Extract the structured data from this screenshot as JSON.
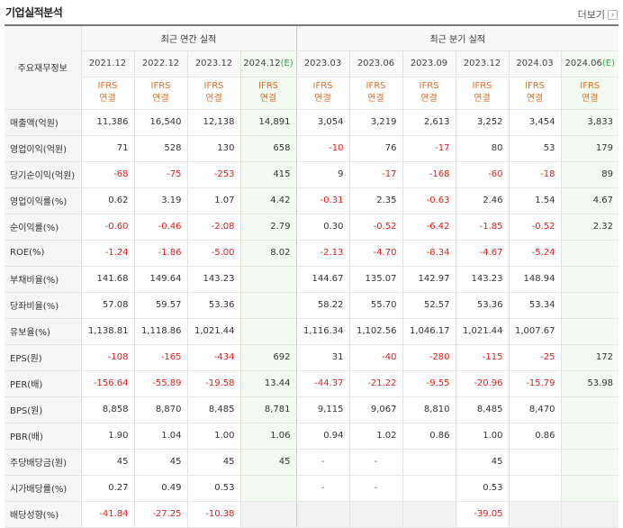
{
  "title": "기업실적분석",
  "more_label": "더보기",
  "corner_label": "주요재무정보",
  "groups": {
    "annual": "최근 연간 실적",
    "quarterly": "최근 분기 실적"
  },
  "periods": [
    {
      "label": "2021.12",
      "est": ""
    },
    {
      "label": "2022.12",
      "est": ""
    },
    {
      "label": "2023.12",
      "est": ""
    },
    {
      "label": "2024.12",
      "est": "(E)"
    },
    {
      "label": "2023.03",
      "est": ""
    },
    {
      "label": "2023.06",
      "est": ""
    },
    {
      "label": "2023.09",
      "est": ""
    },
    {
      "label": "2023.12",
      "est": ""
    },
    {
      "label": "2024.03",
      "est": ""
    },
    {
      "label": "2024.06",
      "est": "(E)"
    }
  ],
  "ifrs": {
    "line1": "IFRS",
    "line2": "연결"
  },
  "rows": [
    {
      "label": "매출액(억원)",
      "values": [
        "11,386",
        "16,540",
        "12,138",
        "14,891",
        "3,054",
        "3,219",
        "2,613",
        "3,252",
        "3,454",
        "3,833"
      ]
    },
    {
      "label": "영업이익(억원)",
      "values": [
        "71",
        "528",
        "130",
        "658",
        "-10",
        "76",
        "-17",
        "80",
        "53",
        "179"
      ]
    },
    {
      "label": "당기순이익(억원)",
      "values": [
        "-68",
        "-75",
        "-253",
        "415",
        "9",
        "-17",
        "-168",
        "-60",
        "-18",
        "89"
      ]
    },
    {
      "label": "영업이익률(%)",
      "values": [
        "0.62",
        "3.19",
        "1.07",
        "4.42",
        "-0.31",
        "2.35",
        "-0.63",
        "2.46",
        "1.54",
        "4.67"
      ]
    },
    {
      "label": "순이익률(%)",
      "values": [
        "-0.60",
        "-0.46",
        "-2.08",
        "2.79",
        "0.30",
        "-0.52",
        "-6.42",
        "-1.85",
        "-0.52",
        "2.32"
      ]
    },
    {
      "label": "ROE(%)",
      "values": [
        "-1.24",
        "-1.86",
        "-5.00",
        "8.02",
        "-2.13",
        "-4.70",
        "-8.34",
        "-4.67",
        "-5.24",
        ""
      ]
    },
    {
      "label": "부채비율(%)",
      "values": [
        "141.68",
        "149.64",
        "143.23",
        "",
        "144.67",
        "135.07",
        "142.97",
        "143.23",
        "148.94",
        ""
      ]
    },
    {
      "label": "당좌비율(%)",
      "values": [
        "57.08",
        "59.57",
        "53.36",
        "",
        "58.22",
        "55.70",
        "52.57",
        "53.36",
        "53.34",
        ""
      ]
    },
    {
      "label": "유보율(%)",
      "values": [
        "1,138.81",
        "1,118.86",
        "1,021.44",
        "",
        "1,116.34",
        "1,102.56",
        "1,046.17",
        "1,021.44",
        "1,007.67",
        ""
      ]
    },
    {
      "label": "EPS(원)",
      "values": [
        "-108",
        "-165",
        "-434",
        "692",
        "31",
        "-40",
        "-280",
        "-115",
        "-25",
        "172"
      ]
    },
    {
      "label": "PER(배)",
      "values": [
        "-156.64",
        "-55.89",
        "-19.58",
        "13.44",
        "-44.37",
        "-21.22",
        "-9.55",
        "-20.96",
        "-15.79",
        "53.98"
      ]
    },
    {
      "label": "BPS(원)",
      "values": [
        "8,858",
        "8,870",
        "8,485",
        "8,781",
        "9,115",
        "9,067",
        "8,810",
        "8,485",
        "8,470",
        ""
      ]
    },
    {
      "label": "PBR(배)",
      "values": [
        "1.90",
        "1.04",
        "1.00",
        "1.06",
        "0.94",
        "1.02",
        "0.86",
        "1.00",
        "0.86",
        ""
      ]
    },
    {
      "label": "주당배당금(원)",
      "values": [
        "45",
        "45",
        "45",
        "45",
        "-",
        "-",
        "",
        "45",
        "",
        ""
      ]
    },
    {
      "label": "시가배당률(%)",
      "values": [
        "0.27",
        "0.49",
        "0.53",
        "",
        "-",
        "-",
        "",
        "0.53",
        "",
        ""
      ]
    },
    {
      "label": "배당성향(%)",
      "values": [
        "-41.84",
        "-27.25",
        "-10.38",
        "",
        "",
        "",
        "",
        "-39.05",
        "",
        ""
      ]
    }
  ],
  "colors": {
    "negative": "#e0221f",
    "ifrs": "#e0702a",
    "estimate_bg": "#f3faf0",
    "estimate_mark": "#3aa04a"
  }
}
